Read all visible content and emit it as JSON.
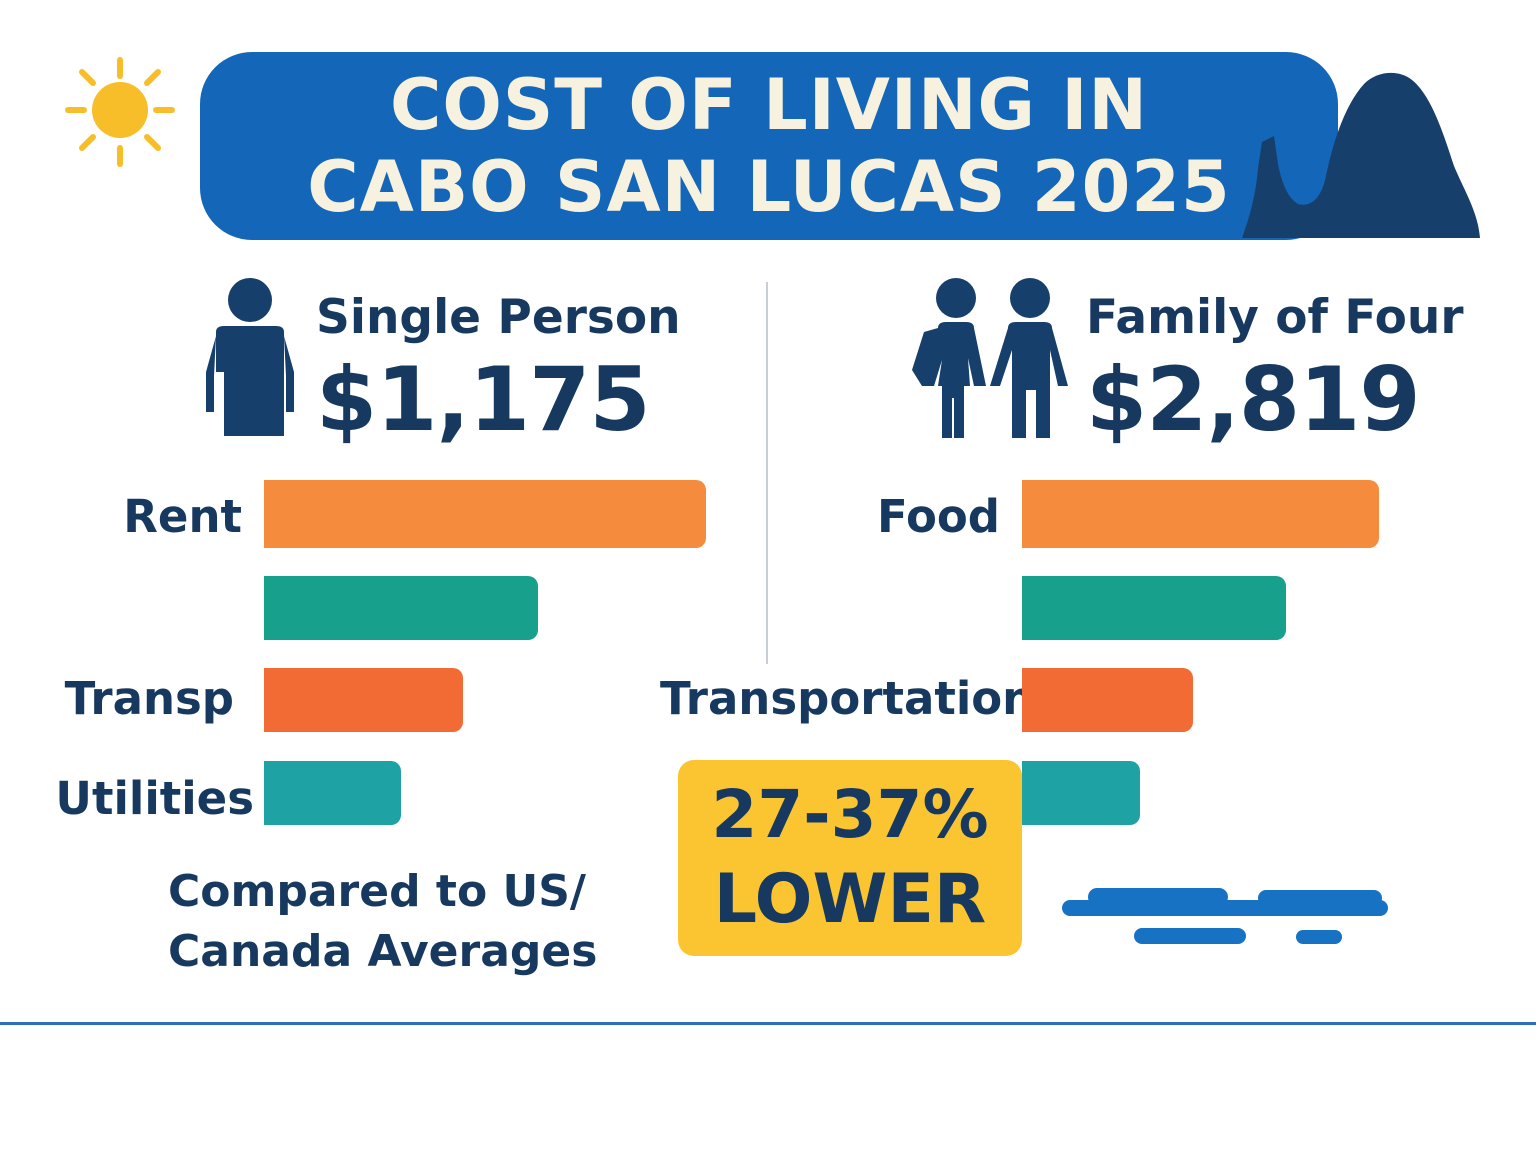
{
  "title": {
    "line1": "COST OF LIVING IN",
    "line2": "CABO SAN LUCAS 2025"
  },
  "colors": {
    "banner": "#1466b8",
    "title_text": "#f6f2df",
    "navy": "#17395f",
    "orange": "#f58b3c",
    "orange_dark": "#f26b35",
    "green": "#17a08b",
    "teal": "#1fa2a4",
    "badge": "#fbc531",
    "water": "#1872c4"
  },
  "icons": [
    "sun-icon",
    "single-person-icon",
    "couple-icon",
    "arch-rock-icon",
    "water-wave-icon"
  ],
  "single": {
    "label": "Single Person",
    "amount": "$1,175"
  },
  "family": {
    "label": "Family of Four",
    "amount": "$2,819"
  },
  "comparison": {
    "text": "Compared to US/ Canada Averages",
    "range": "27-37%",
    "lower": "LOWER"
  },
  "chart_data": [
    {
      "type": "bar",
      "orientation": "horizontal",
      "title": "Single Person",
      "categories": [
        "Rent",
        "",
        "Transp",
        "Utilities"
      ],
      "values": [
        100,
        62,
        45,
        31
      ],
      "xlim": [
        0,
        100
      ],
      "bar_colors": [
        "#f58b3c",
        "#17a08b",
        "#f26b35",
        "#1fa2a4"
      ]
    },
    {
      "type": "bar",
      "orientation": "horizontal",
      "title": "Family of Four",
      "categories": [
        "Food",
        "",
        "Transportation",
        ""
      ],
      "values": [
        100,
        74,
        48,
        33
      ],
      "xlim": [
        0,
        100
      ],
      "bar_colors": [
        "#f58b3c",
        "#17a08b",
        "#f26b35",
        "#1fa2a4"
      ]
    }
  ]
}
